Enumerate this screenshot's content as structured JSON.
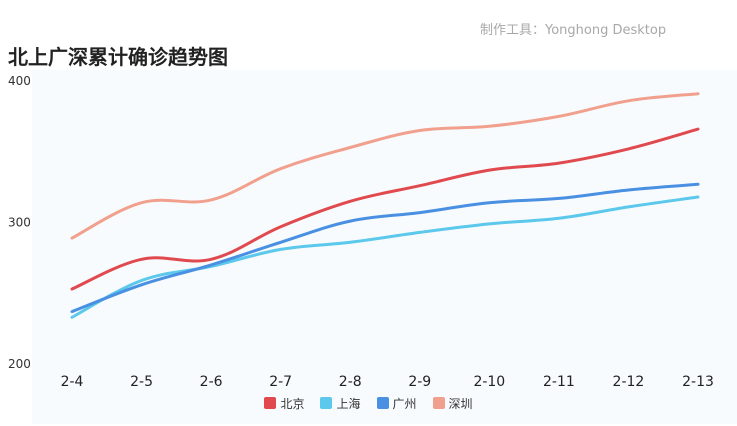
{
  "credit": "制作工具：Yonghong Desktop",
  "chart_data": {
    "type": "line",
    "title": "北上广深累计确诊趋势图",
    "xlabel": "",
    "ylabel": "",
    "categories": [
      "2-4",
      "2-5",
      "2-6",
      "2-7",
      "2-8",
      "2-9",
      "2-10",
      "2-11",
      "2-12",
      "2-13"
    ],
    "ylim": [
      200,
      400
    ],
    "yticks": [
      200,
      300,
      400
    ],
    "grid": false,
    "legend_position": "bottom",
    "series": [
      {
        "name": "北京",
        "color": "#e04a4f",
        "values": [
          253,
          274,
          274,
          297,
          315,
          326,
          337,
          342,
          352,
          366
        ]
      },
      {
        "name": "上海",
        "color": "#5bc8ec",
        "values": [
          233,
          259,
          269,
          281,
          286,
          293,
          299,
          303,
          311,
          318
        ]
      },
      {
        "name": "广州",
        "color": "#4a90e2",
        "values": [
          237,
          256,
          270,
          286,
          301,
          307,
          314,
          317,
          323,
          327
        ]
      },
      {
        "name": "深圳",
        "color": "#f2a08e",
        "values": [
          289,
          314,
          316,
          338,
          353,
          365,
          368,
          375,
          386,
          391
        ]
      }
    ]
  }
}
